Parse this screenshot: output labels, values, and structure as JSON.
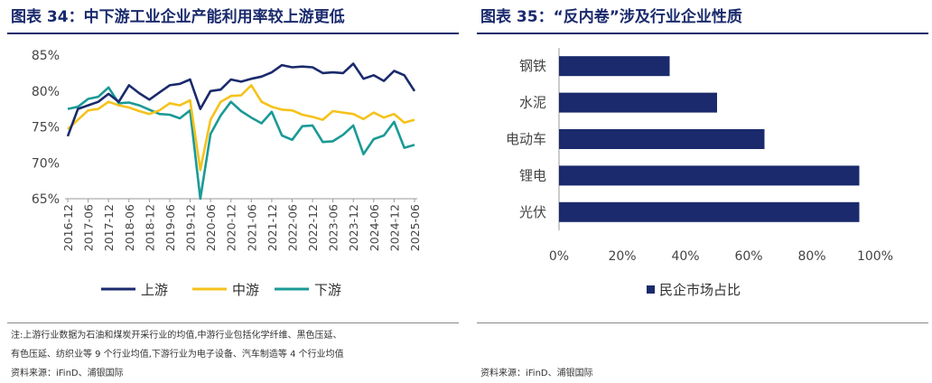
{
  "left": {
    "title": "图表 34：中下游工业企业产能利用率较上游更低",
    "notes": [
      "注:上游行业数据为石油和煤炭开采行业的均值,中游行业包括化学纤维、黑色压延、",
      "有色压延、纺织业等 9 个行业均值,下游行业为电子设备、汽车制造等 4 个行业均值"
    ],
    "source": "资料来源：iFinD、浦银国际"
  },
  "right": {
    "title": "图表 35：“反内卷”涉及行业企业性质",
    "source": "资料来源：iFinD、浦银国际"
  },
  "chart_data": [
    {
      "type": "line",
      "title": "",
      "xlabel": "",
      "ylabel": "",
      "ylim": [
        65,
        85
      ],
      "yticks": [
        65,
        70,
        75,
        80,
        85
      ],
      "ytick_labels": [
        "65%",
        "70%",
        "75%",
        "80%",
        "85%"
      ],
      "x_tick_labels": [
        "2016-12",
        "2017-06",
        "2017-12",
        "2018-06",
        "2018-12",
        "2019-06",
        "2019-12",
        "2020-06",
        "2020-12",
        "2021-06",
        "2021-12",
        "2022-06",
        "2022-12",
        "2023-06",
        "2023-12",
        "2024-06",
        "2024-12",
        "2025-06"
      ],
      "x": [
        "2016-12",
        "2017-03",
        "2017-06",
        "2017-09",
        "2017-12",
        "2018-03",
        "2018-06",
        "2018-09",
        "2018-12",
        "2019-03",
        "2019-06",
        "2019-09",
        "2019-12",
        "2020-03",
        "2020-06",
        "2020-09",
        "2020-12",
        "2021-03",
        "2021-06",
        "2021-09",
        "2021-12",
        "2022-03",
        "2022-06",
        "2022-09",
        "2022-12",
        "2023-03",
        "2023-06",
        "2023-09",
        "2023-12",
        "2024-03",
        "2024-06",
        "2024-09",
        "2024-12",
        "2025-03",
        "2025-06"
      ],
      "legend_position": "bottom",
      "series": [
        {
          "name": "上游",
          "color": "#1a2a6c",
          "values": [
            73.7,
            77.5,
            78.0,
            78.5,
            79.6,
            78.5,
            80.8,
            79.7,
            78.8,
            79.8,
            80.8,
            81.0,
            81.6,
            77.5,
            80.0,
            80.2,
            81.6,
            81.3,
            81.7,
            82.0,
            82.6,
            83.6,
            83.3,
            83.4,
            83.3,
            82.5,
            82.6,
            82.5,
            83.8,
            81.7,
            82.2,
            81.4,
            82.8,
            82.2,
            80.0
          ]
        },
        {
          "name": "中游",
          "color": "#f5c21b",
          "values": [
            74.7,
            76.0,
            77.3,
            77.5,
            78.5,
            78.0,
            77.7,
            77.2,
            76.8,
            77.3,
            78.3,
            78.0,
            78.7,
            69.0,
            76.0,
            78.5,
            79.3,
            79.4,
            80.8,
            78.5,
            77.8,
            77.4,
            77.3,
            76.7,
            76.4,
            76.0,
            77.2,
            77.0,
            76.8,
            76.1,
            77.0,
            76.3,
            76.8,
            75.6,
            76.0
          ]
        },
        {
          "name": "下游",
          "color": "#1a9a96",
          "values": [
            77.5,
            77.8,
            78.9,
            79.2,
            80.5,
            78.3,
            78.4,
            78.0,
            77.4,
            76.8,
            76.7,
            76.2,
            77.3,
            65.0,
            74.0,
            76.6,
            78.5,
            77.2,
            76.3,
            75.5,
            77.1,
            73.8,
            73.2,
            75.1,
            75.2,
            72.9,
            73.0,
            73.9,
            75.2,
            71.2,
            73.3,
            73.8,
            75.7,
            72.1,
            72.5
          ]
        }
      ]
    },
    {
      "type": "bar",
      "orientation": "horizontal",
      "title": "",
      "xlabel": "",
      "ylabel": "",
      "xlim": [
        0,
        100
      ],
      "xticks": [
        0,
        20,
        40,
        60,
        80,
        100
      ],
      "xtick_labels": [
        "0%",
        "20%",
        "40%",
        "60%",
        "80%",
        "100%"
      ],
      "categories": [
        "钢铁",
        "水泥",
        "电动车",
        "锂电",
        "光伏"
      ],
      "series": [
        {
          "name": "民企市场占比",
          "color": "#1a2a6c",
          "values": [
            35,
            50,
            65,
            95,
            95
          ]
        }
      ],
      "legend_position": "bottom"
    }
  ]
}
